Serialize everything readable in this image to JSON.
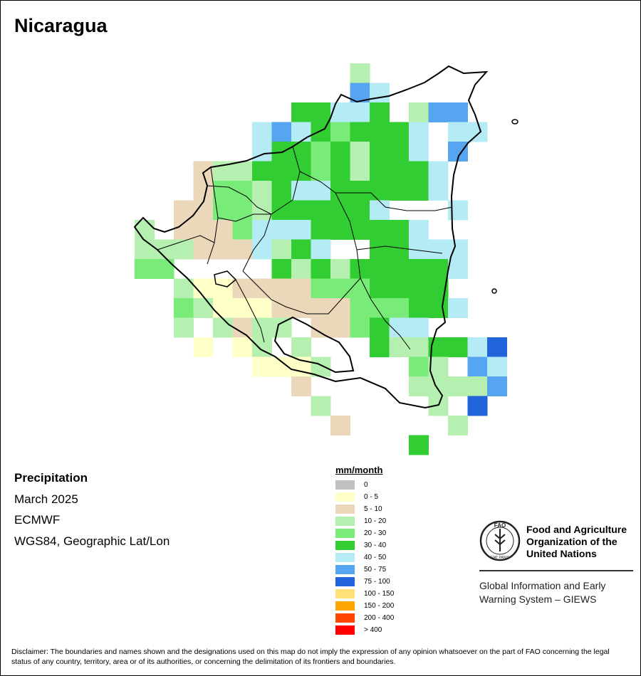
{
  "title": "Nicaragua",
  "info": {
    "product": "Precipitation",
    "period": "March 2025",
    "source": "ECMWF",
    "projection": "WGS84, Geographic Lat/Lon"
  },
  "legend": {
    "title": "mm/month",
    "classes": [
      {
        "label": "0",
        "color": "#c0c0c0"
      },
      {
        "label": "0 - 5",
        "color": "#ffffc8"
      },
      {
        "label": "5 - 10",
        "color": "#ebd7b9"
      },
      {
        "label": "10 - 20",
        "color": "#b6f0b0"
      },
      {
        "label": "20 - 30",
        "color": "#78eb78"
      },
      {
        "label": "30 - 40",
        "color": "#32cd32"
      },
      {
        "label": "40 - 50",
        "color": "#b4ebf5"
      },
      {
        "label": "50 - 75",
        "color": "#55a5f0"
      },
      {
        "label": "75 - 100",
        "color": "#2164dc"
      },
      {
        "label": "100 - 150",
        "color": "#ffe178"
      },
      {
        "label": "150 - 200",
        "color": "#ffa500"
      },
      {
        "label": "200 - 400",
        "color": "#ff4500"
      },
      {
        "label": "> 400",
        "color": "#ff0000"
      }
    ]
  },
  "fao": {
    "name_lines": [
      "Food and Agriculture",
      "Organization of the",
      "United Nations"
    ],
    "emblem_letters": "FAO",
    "emblem_motto": "FIAT PANIS",
    "giews_lines": [
      "Global Information and Early",
      "Warning System – GIEWS"
    ]
  },
  "disclaimer": "Disclaimer: The boundaries and names shown and the designations used on this map do not imply the expression of any opinion whatsoever on the part of FAO concerning the legal status of any country, territory, area or of its authorities, or concerning the delimitation of its frontiers and boundaries.",
  "grid": {
    "cell_classes": [
      "...........3........",
      "...........76.......",
      "........55665.377...",
      "......676545556.66..",
      "......655453556.7...",
      "...2335554535556....",
      "...2443566555556....",
      "..22443555556...6...",
      "3.2224666555556.....",
      "3332226356..55666...",
      "44.....5353555556...",
      "..31122224445555....",
      "..431112222444556...",
      "..3.3233.224566....",
      "...1.13.3...5335568.",
      "......1113....43.76.",
      "........2.....33337.",
      ".........3.....3.8..",
      "..........2.....3....",
      "..............5....."
    ]
  }
}
